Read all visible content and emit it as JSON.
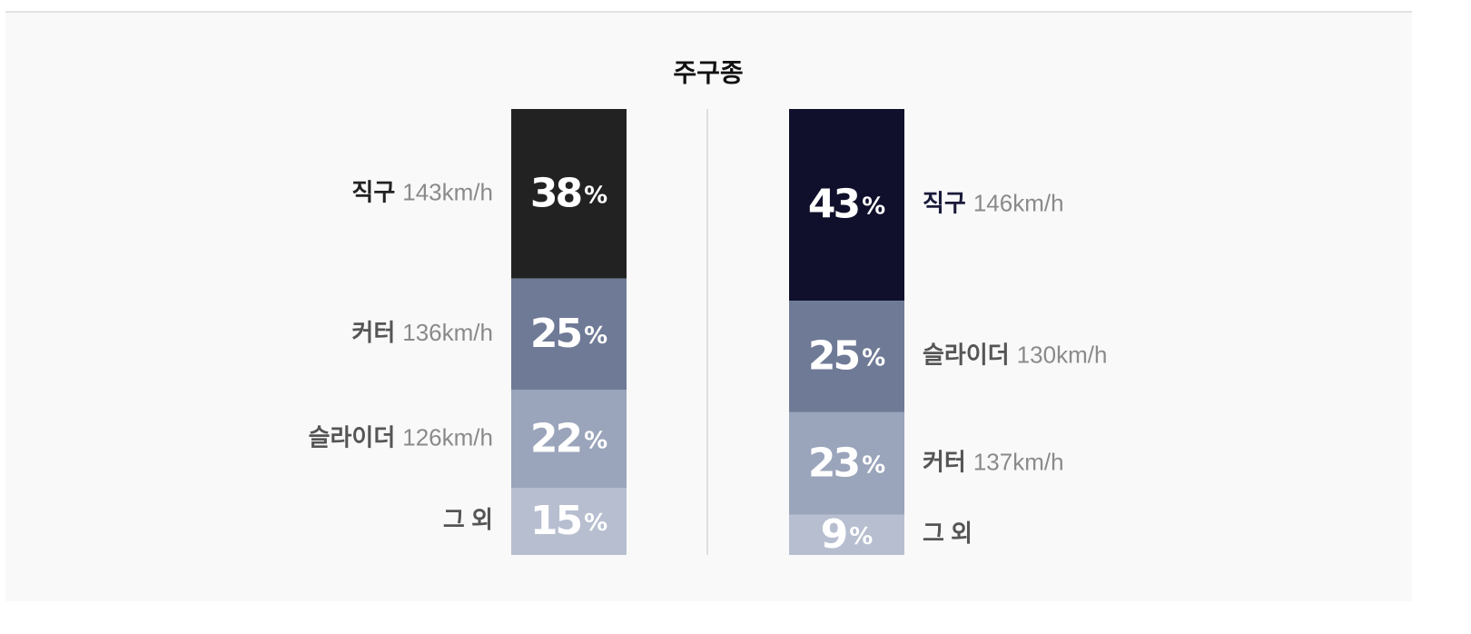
{
  "title": "주구종",
  "chart_data": [
    {
      "type": "stacked-column",
      "label_side": "left",
      "series": [
        {
          "name": "직구",
          "speed": "143km/h",
          "color": "#222222",
          "values": [
            38
          ],
          "value_labels": [
            "38%"
          ]
        },
        {
          "name": "커터",
          "speed": "136km/h",
          "color": "#6f7a96",
          "values": [
            25
          ],
          "value_labels": [
            "25%"
          ]
        },
        {
          "name": "슬라이더",
          "speed": "126km/h",
          "color": "#9aa4ba",
          "values": [
            22
          ],
          "value_labels": [
            "22%"
          ]
        },
        {
          "name": "그 외",
          "color": "#b7bed0",
          "values": [
            15
          ],
          "value_labels": [
            "15%"
          ]
        }
      ]
    },
    {
      "type": "stacked-column",
      "label_side": "right",
      "series": [
        {
          "name": "직구",
          "speed": "146km/h",
          "color": "#10102c",
          "values": [
            43
          ],
          "value_labels": [
            "43%"
          ]
        },
        {
          "name": "슬라이더",
          "speed": "130km/h",
          "color": "#6f7a96",
          "values": [
            25
          ],
          "value_labels": [
            "25%"
          ]
        },
        {
          "name": "커터",
          "speed": "137km/h",
          "color": "#9aa4ba",
          "values": [
            23
          ],
          "value_labels": [
            "23%"
          ]
        },
        {
          "name": "그 외",
          "color": "#b7bed0",
          "values": [
            9
          ],
          "value_labels": [
            "9%"
          ]
        }
      ]
    }
  ]
}
